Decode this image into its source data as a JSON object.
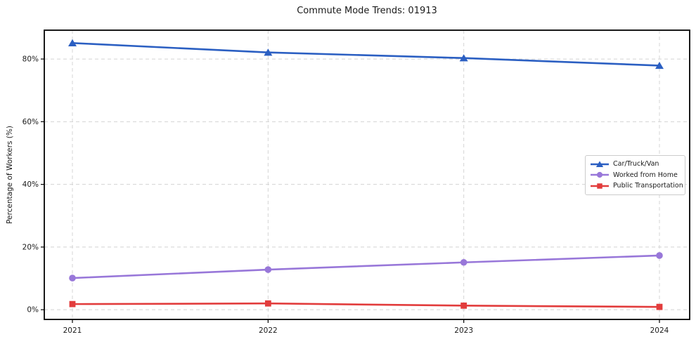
{
  "title": "Commute Mode Trends: 01913",
  "chart_data": {
    "type": "line",
    "title": "Commute Mode Trends: 01913",
    "xlabel": "",
    "ylabel": "Percentage of Workers (%)",
    "x": [
      2021,
      2022,
      2023,
      2024
    ],
    "x_labels": [
      "2021",
      "2022",
      "2023",
      "2024"
    ],
    "yticks": [
      0,
      20,
      40,
      60,
      80
    ],
    "ytick_labels": [
      "0%",
      "20%",
      "40%",
      "60%",
      "80%"
    ],
    "ylim": [
      -3.1,
      89.2
    ],
    "grid": true,
    "grid_style": "dashed",
    "legend_position": "center-right",
    "series": [
      {
        "name": "Car/Truck/Van",
        "marker": "triangle",
        "color": "#2b5fc2",
        "values": [
          85.1,
          82.1,
          80.3,
          77.9
        ]
      },
      {
        "name": "Worked from Home",
        "marker": "circle",
        "color": "#9877d9",
        "values": [
          10.1,
          12.8,
          15.1,
          17.3
        ]
      },
      {
        "name": "Public Transportation",
        "marker": "square",
        "color": "#e23c3c",
        "values": [
          1.8,
          2.0,
          1.3,
          0.9
        ]
      }
    ],
    "style": {
      "grid_color": "#d4d4d4",
      "spine_color": "#000000",
      "text_color": "#1a1a1a",
      "background": "#ffffff"
    }
  }
}
